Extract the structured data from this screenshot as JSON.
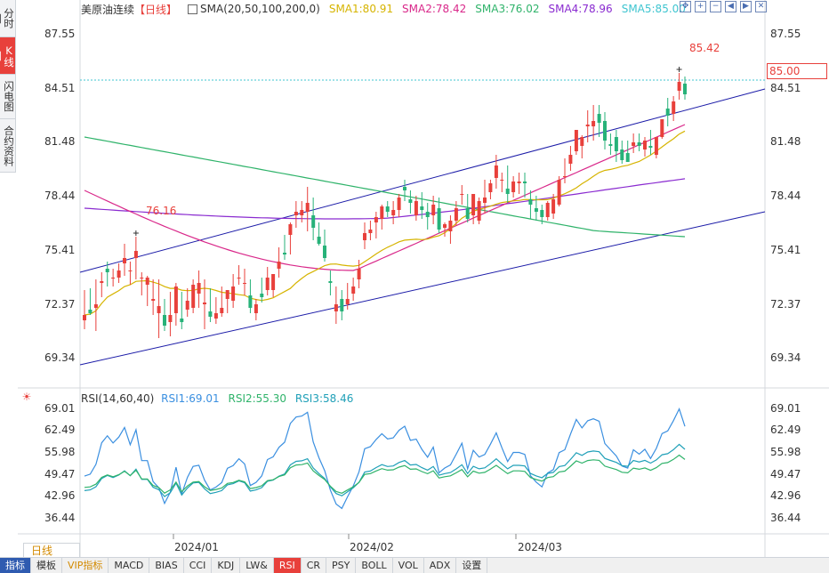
{
  "legend": {
    "name": "美原油连续",
    "period": "【日线】",
    "sma_label": "SMA(20,50,100,200,0)",
    "sma1": "SMA1:80.91",
    "sma2": "SMA2:78.42",
    "sma3": "SMA3:76.02",
    "sma4": "SMA4:78.96",
    "sma5": "SMA5:85.00"
  },
  "colors": {
    "sma1": "#d6b400",
    "sma2": "#d9288a",
    "sma3": "#2fb36a",
    "sma4": "#8a2bd0",
    "sma5": "#3fc5d0",
    "up": "#e8403b",
    "down": "#27b279",
    "channel": "#1c1ca8"
  },
  "side_tabs": [
    "分时图",
    "K线图",
    "闪电图",
    "合约资料"
  ],
  "side_active": 1,
  "price_axis": [
    "87.55",
    "84.51",
    "81.48",
    "78.44",
    "75.41",
    "72.37",
    "69.34"
  ],
  "current_price": "85.00",
  "annotations": {
    "high": "85.42",
    "low": "76.16"
  },
  "rsi": {
    "label": "RSI(14,60,40)",
    "rsi1": "RSI1:69.01",
    "rsi2": "RSI2:55.30",
    "rsi3": "RSI3:58.46",
    "axis": [
      "69.01",
      "62.49",
      "55.98",
      "49.47",
      "42.96",
      "36.44"
    ]
  },
  "dates": [
    "2024/01",
    "2024/02",
    "2024/03"
  ],
  "period_tab": "日线",
  "bottom_tabs": [
    "指标",
    "模板",
    "VIP指标",
    "MACD",
    "BIAS",
    "CCI",
    "KDJ",
    "LW&",
    "RSI",
    "CR",
    "PSY",
    "BOLL",
    "VOL",
    "ADX",
    "设置"
  ],
  "bottom_active": "RSI",
  "chart_data": {
    "type": "candlestick",
    "ylim": [
      68.0,
      88.5
    ],
    "candles": [
      [
        71.5,
        73.2,
        71.8,
        71.0
      ],
      [
        72.1,
        73.3,
        71.9,
        71.8
      ],
      [
        72.2,
        73.8,
        72.4,
        70.9
      ],
      [
        73.6,
        74.2,
        73.7,
        72.8
      ],
      [
        74.4,
        74.8,
        74.2,
        73.4
      ],
      [
        73.9,
        74.4,
        73.9,
        73.4
      ],
      [
        73.9,
        74.7,
        74.3,
        73.6
      ],
      [
        74.7,
        75.8,
        75.0,
        74.0
      ],
      [
        74.3,
        74.8,
        74.3,
        73.5
      ],
      [
        75.0,
        76.2,
        75.4,
        73.8
      ],
      [
        73.9,
        74.2,
        73.9,
        72.9
      ],
      [
        73.5,
        74.0,
        73.9,
        72.3
      ],
      [
        72.6,
        73.8,
        72.7,
        71.8
      ],
      [
        71.9,
        73.8,
        72.3,
        70.5
      ],
      [
        71.8,
        72.7,
        71.2,
        70.9
      ],
      [
        71.4,
        73.1,
        71.8,
        70.6
      ],
      [
        71.9,
        73.6,
        73.4,
        71.2
      ],
      [
        71.6,
        73.1,
        71.4,
        71.0
      ],
      [
        72.1,
        73.3,
        72.6,
        71.7
      ],
      [
        72.2,
        73.8,
        73.5,
        71.9
      ],
      [
        73.0,
        74.3,
        73.6,
        72.2
      ],
      [
        72.4,
        73.8,
        72.5,
        71.0
      ],
      [
        72.0,
        73.3,
        71.7,
        71.4
      ],
      [
        71.6,
        72.8,
        71.9,
        71.3
      ],
      [
        71.9,
        73.4,
        72.2,
        71.7
      ],
      [
        72.7,
        73.0,
        73.2,
        71.9
      ],
      [
        72.6,
        74.1,
        73.4,
        72.2
      ],
      [
        73.9,
        74.6,
        73.9,
        73.5
      ],
      [
        73.6,
        74.4,
        73.6,
        72.9
      ],
      [
        72.9,
        73.8,
        72.2,
        71.9
      ],
      [
        71.9,
        72.7,
        72.4,
        71.5
      ],
      [
        73.0,
        73.9,
        72.8,
        72.5
      ],
      [
        73.2,
        74.5,
        73.9,
        72.9
      ],
      [
        73.2,
        74.0,
        74.1,
        72.8
      ],
      [
        74.4,
        75.6,
        74.8,
        73.9
      ],
      [
        75.3,
        76.3,
        75.2,
        74.9
      ],
      [
        76.3,
        77.0,
        76.9,
        75.2
      ],
      [
        77.4,
        78.2,
        77.6,
        76.7
      ],
      [
        77.4,
        78.2,
        77.7,
        77.0
      ],
      [
        77.6,
        79.0,
        78.1,
        76.5
      ],
      [
        77.4,
        78.4,
        76.7,
        76.0
      ],
      [
        76.2,
        77.0,
        75.8,
        75.7
      ],
      [
        75.7,
        76.6,
        75.0,
        74.8
      ],
      [
        73.7,
        74.3,
        73.6,
        72.9
      ],
      [
        72.0,
        73.4,
        72.4,
        71.3
      ],
      [
        72.7,
        73.2,
        72.0,
        71.5
      ],
      [
        72.4,
        73.6,
        72.7,
        72.1
      ],
      [
        73.0,
        73.9,
        73.4,
        72.6
      ],
      [
        73.8,
        74.9,
        74.4,
        73.3
      ],
      [
        76.0,
        77.0,
        76.4,
        75.5
      ],
      [
        76.4,
        77.1,
        76.6,
        76.0
      ],
      [
        77.0,
        77.6,
        77.3,
        76.1
      ],
      [
        77.2,
        78.0,
        77.9,
        76.6
      ],
      [
        77.9,
        78.2,
        77.6,
        77.3
      ],
      [
        77.4,
        78.2,
        77.7,
        76.9
      ],
      [
        77.7,
        78.6,
        78.4,
        77.3
      ],
      [
        79.0,
        79.4,
        78.8,
        78.2
      ],
      [
        78.3,
        78.8,
        78.1,
        77.5
      ],
      [
        77.4,
        78.5,
        78.2,
        77.1
      ],
      [
        77.9,
        78.7,
        77.7,
        77.2
      ],
      [
        77.6,
        78.1,
        77.3,
        76.6
      ],
      [
        77.4,
        78.5,
        78.0,
        76.9
      ],
      [
        77.8,
        78.4,
        76.6,
        76.4
      ],
      [
        76.7,
        77.0,
        76.9,
        76.2
      ],
      [
        76.5,
        77.4,
        77.1,
        75.8
      ],
      [
        77.1,
        78.2,
        77.8,
        76.8
      ],
      [
        78.6,
        79.1,
        78.6,
        78.0
      ],
      [
        77.8,
        78.6,
        77.2,
        77.0
      ],
      [
        77.4,
        78.5,
        78.6,
        76.9
      ],
      [
        77.1,
        78.4,
        78.2,
        76.9
      ],
      [
        78.1,
        79.4,
        78.4,
        77.5
      ],
      [
        78.7,
        79.4,
        79.2,
        78.3
      ],
      [
        79.5,
        80.8,
        80.2,
        78.9
      ],
      [
        79.4,
        79.8,
        79.4,
        78.7
      ],
      [
        78.9,
        80.2,
        78.6,
        78.1
      ],
      [
        78.7,
        79.6,
        79.3,
        78.4
      ],
      [
        79.2,
        79.8,
        79.3,
        78.6
      ],
      [
        79.3,
        79.8,
        79.2,
        78.4
      ],
      [
        78.3,
        78.8,
        78.0,
        77.2
      ],
      [
        77.8,
        78.5,
        77.6,
        77.1
      ],
      [
        77.7,
        78.0,
        77.3,
        76.9
      ],
      [
        77.3,
        78.2,
        78.1,
        77.1
      ],
      [
        77.5,
        78.6,
        78.3,
        77.2
      ],
      [
        78.0,
        79.6,
        79.4,
        77.9
      ],
      [
        79.6,
        80.6,
        79.6,
        79.2
      ],
      [
        80.3,
        81.3,
        80.8,
        79.9
      ],
      [
        81.0,
        81.6,
        82.2,
        80.8
      ],
      [
        81.3,
        81.9,
        81.8,
        80.6
      ],
      [
        82.4,
        83.3,
        82.5,
        81.5
      ],
      [
        82.4,
        83.6,
        82.7,
        81.6
      ],
      [
        83.1,
        83.6,
        82.6,
        81.8
      ],
      [
        82.7,
        83.2,
        81.6,
        81.1
      ],
      [
        81.4,
        82.0,
        81.3,
        80.8
      ],
      [
        81.8,
        82.2,
        81.0,
        80.4
      ],
      [
        81.1,
        81.6,
        80.5,
        80.3
      ],
      [
        80.9,
        81.6,
        80.4,
        80.5
      ],
      [
        81.3,
        82.0,
        81.5,
        80.9
      ],
      [
        81.5,
        82.0,
        81.3,
        81.0
      ],
      [
        81.1,
        81.8,
        81.6,
        80.7
      ],
      [
        81.3,
        82.2,
        81.2,
        80.8
      ],
      [
        80.8,
        81.8,
        81.8,
        80.6
      ],
      [
        81.8,
        82.8,
        82.8,
        81.7
      ],
      [
        83.4,
        84.0,
        83.0,
        82.4
      ],
      [
        83.1,
        84.1,
        83.8,
        82.7
      ],
      [
        84.4,
        85.4,
        84.9,
        83.9
      ],
      [
        84.8,
        85.2,
        84.2,
        83.9
      ]
    ],
    "rsi_range": [
      33.0,
      71.0
    ]
  }
}
